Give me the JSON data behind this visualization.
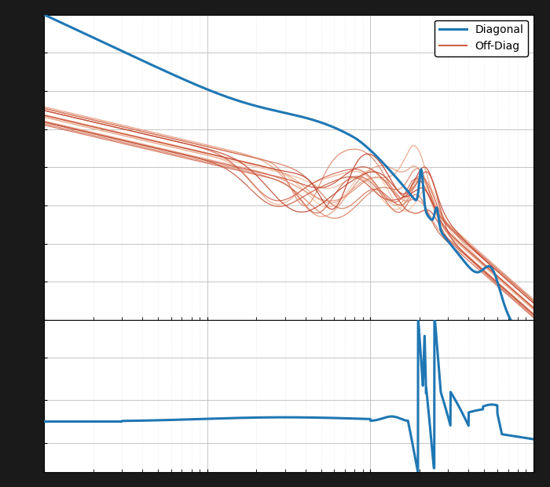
{
  "diagonal_color": "#1f77b4",
  "offdiag_color_dark": "#c0402a",
  "offdiag_color_light": "#f5c0a0",
  "background_color": "#ffffff",
  "freq_min": 1,
  "freq_max": 1000,
  "mag_ylim": [
    -100,
    60
  ],
  "phase_ylim": [
    -270,
    90
  ],
  "legend_labels": [
    "Diagonal",
    "Off-Diag"
  ],
  "grid_major_color": "#bbbbbb",
  "grid_minor_color": "#dddddd",
  "n_offdiag": 15
}
